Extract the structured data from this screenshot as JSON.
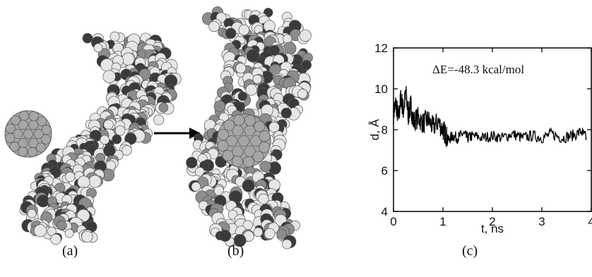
{
  "panels": {
    "a_label": "(a)",
    "b_label": "(b)",
    "c_label": "(c)"
  },
  "molecule_colors": {
    "light": "#e6e6e6",
    "mid": "#8c8c8c",
    "dark": "#3a3a3a",
    "fullerene": "#a6a6a6"
  },
  "chart_data": {
    "type": "line",
    "title": "",
    "xlabel": "t, ns",
    "ylabel": "d, Å",
    "xlim": [
      0,
      4
    ],
    "ylim": [
      4,
      12
    ],
    "xticks": [
      "0",
      "1",
      "2",
      "3",
      "4"
    ],
    "yticks": [
      "4",
      "6",
      "8",
      "10",
      "12"
    ],
    "annotation": "ΔE=-48.3 kcal/mol",
    "grid": false,
    "series": [
      {
        "x": [
          0.0,
          0.05,
          0.1,
          0.15,
          0.2,
          0.25,
          0.3,
          0.35,
          0.4,
          0.5,
          0.6,
          0.7,
          0.8,
          0.9,
          1.0,
          1.05,
          1.1,
          1.2,
          1.3,
          1.4,
          1.5,
          1.6,
          1.8,
          2.0,
          2.2,
          2.4,
          2.6,
          2.8,
          3.0,
          3.2,
          3.4,
          3.6,
          3.8,
          3.9
        ],
        "y": [
          8.8,
          9.3,
          8.5,
          9.6,
          8.9,
          9.8,
          8.7,
          9.2,
          8.4,
          8.6,
          8.3,
          8.5,
          8.1,
          8.4,
          8.0,
          7.8,
          7.5,
          7.7,
          7.6,
          7.8,
          7.6,
          7.7,
          7.6,
          7.7,
          7.6,
          7.8,
          7.6,
          7.7,
          7.6,
          7.8,
          7.6,
          7.7,
          7.9,
          7.6
        ]
      }
    ]
  }
}
